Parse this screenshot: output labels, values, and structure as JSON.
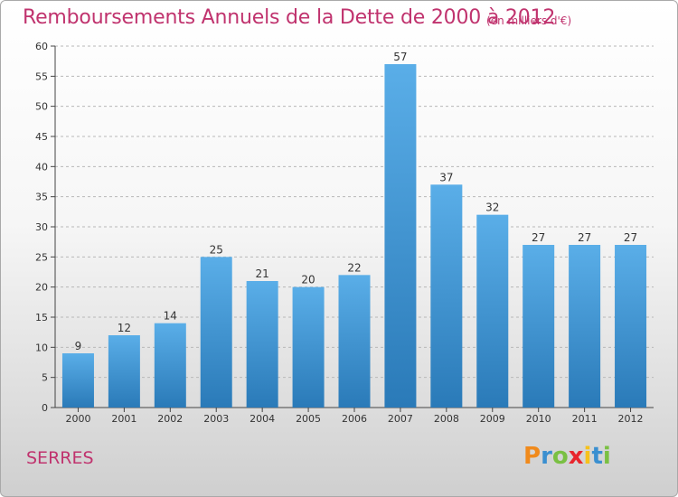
{
  "title": "Remboursements Annuels de la Dette de 2000 à 2012",
  "subtitle": "(en milliers d'€)",
  "commune": "SERRES",
  "logo": {
    "letters": [
      "P",
      "r",
      "o",
      "x",
      "i",
      "t",
      "i"
    ],
    "colors": [
      "#f08a1c",
      "#3a8fd0",
      "#7ac043",
      "#e8262d",
      "#f6c21c",
      "#3a8fd0",
      "#7ac043"
    ]
  },
  "colors": {
    "title": "#c0336e",
    "bar_light": "#5aaee8",
    "bar_dark": "#2a7ab8",
    "grid": "#b8b8b8"
  },
  "chart_data": {
    "type": "bar",
    "categories": [
      "2000",
      "2001",
      "2002",
      "2003",
      "2004",
      "2005",
      "2006",
      "2007",
      "2008",
      "2009",
      "2010",
      "2011",
      "2012"
    ],
    "values": [
      9,
      12,
      14,
      25,
      21,
      20,
      22,
      57,
      37,
      32,
      27,
      27,
      27
    ],
    "data_labels": [
      "9",
      "12",
      "14",
      "25",
      "21",
      "20",
      "22",
      "57",
      "37",
      "32",
      "27",
      "27",
      "27"
    ],
    "yticks": [
      "0",
      "5",
      "10",
      "15",
      "20",
      "25",
      "30",
      "35",
      "40",
      "45",
      "50",
      "55",
      "60"
    ],
    "ylim": [
      0,
      60
    ],
    "grid": true,
    "legend": "none"
  }
}
